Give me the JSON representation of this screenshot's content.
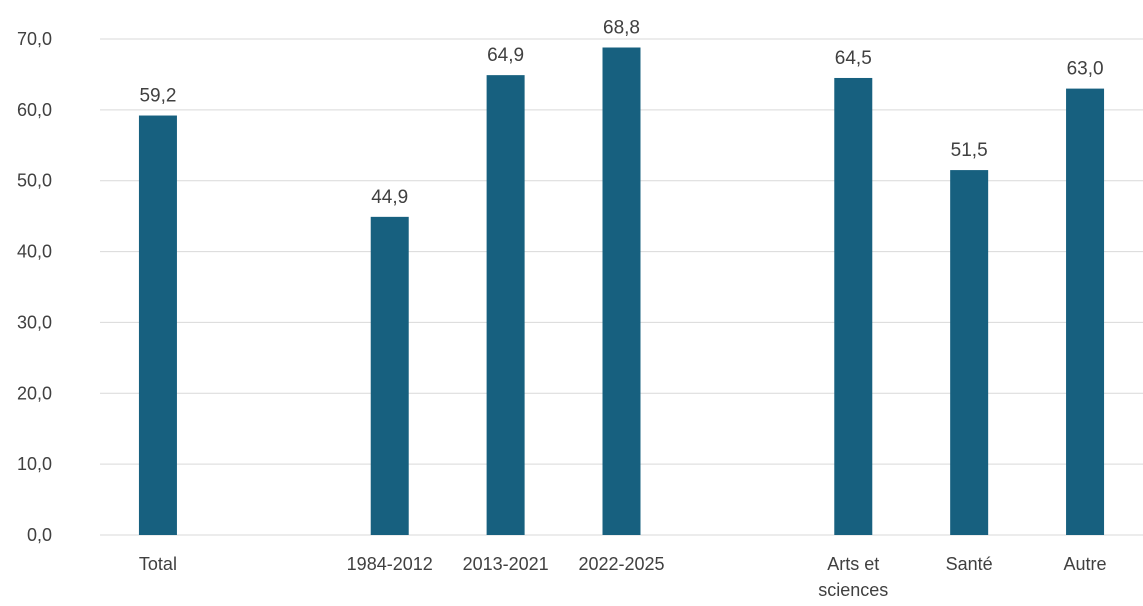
{
  "chart_data": {
    "type": "bar",
    "categories": [
      "Total",
      "",
      "1984-2012",
      "2013-2021",
      "2022-2025",
      "",
      "Arts et sciences",
      "Santé",
      "Autre"
    ],
    "category_lines": [
      [
        "Total"
      ],
      [],
      [
        "1984-2012"
      ],
      [
        "2013-2021"
      ],
      [
        "2022-2025"
      ],
      [],
      [
        "Arts et",
        "sciences"
      ],
      [
        "Santé"
      ],
      [
        "Autre"
      ]
    ],
    "values": [
      59.2,
      null,
      44.9,
      64.9,
      68.8,
      null,
      64.5,
      51.5,
      63.0
    ],
    "data_labels": [
      "59,2",
      "",
      "44,9",
      "64,9",
      "68,8",
      "",
      "64,5",
      "51,5",
      "63,0"
    ],
    "ylim": [
      0,
      70
    ],
    "yticks": [
      0,
      10,
      20,
      30,
      40,
      50,
      60,
      70
    ],
    "ytick_labels": [
      "0,0",
      "10,0",
      "20,0",
      "30,0",
      "40,0",
      "50,0",
      "60,0",
      "70,0"
    ],
    "title": "",
    "xlabel": "",
    "ylabel": "",
    "grid": true,
    "legend": "none",
    "colors": {
      "bar": "#17607f",
      "grid": "#d9d9d9",
      "text": "#404040"
    }
  }
}
